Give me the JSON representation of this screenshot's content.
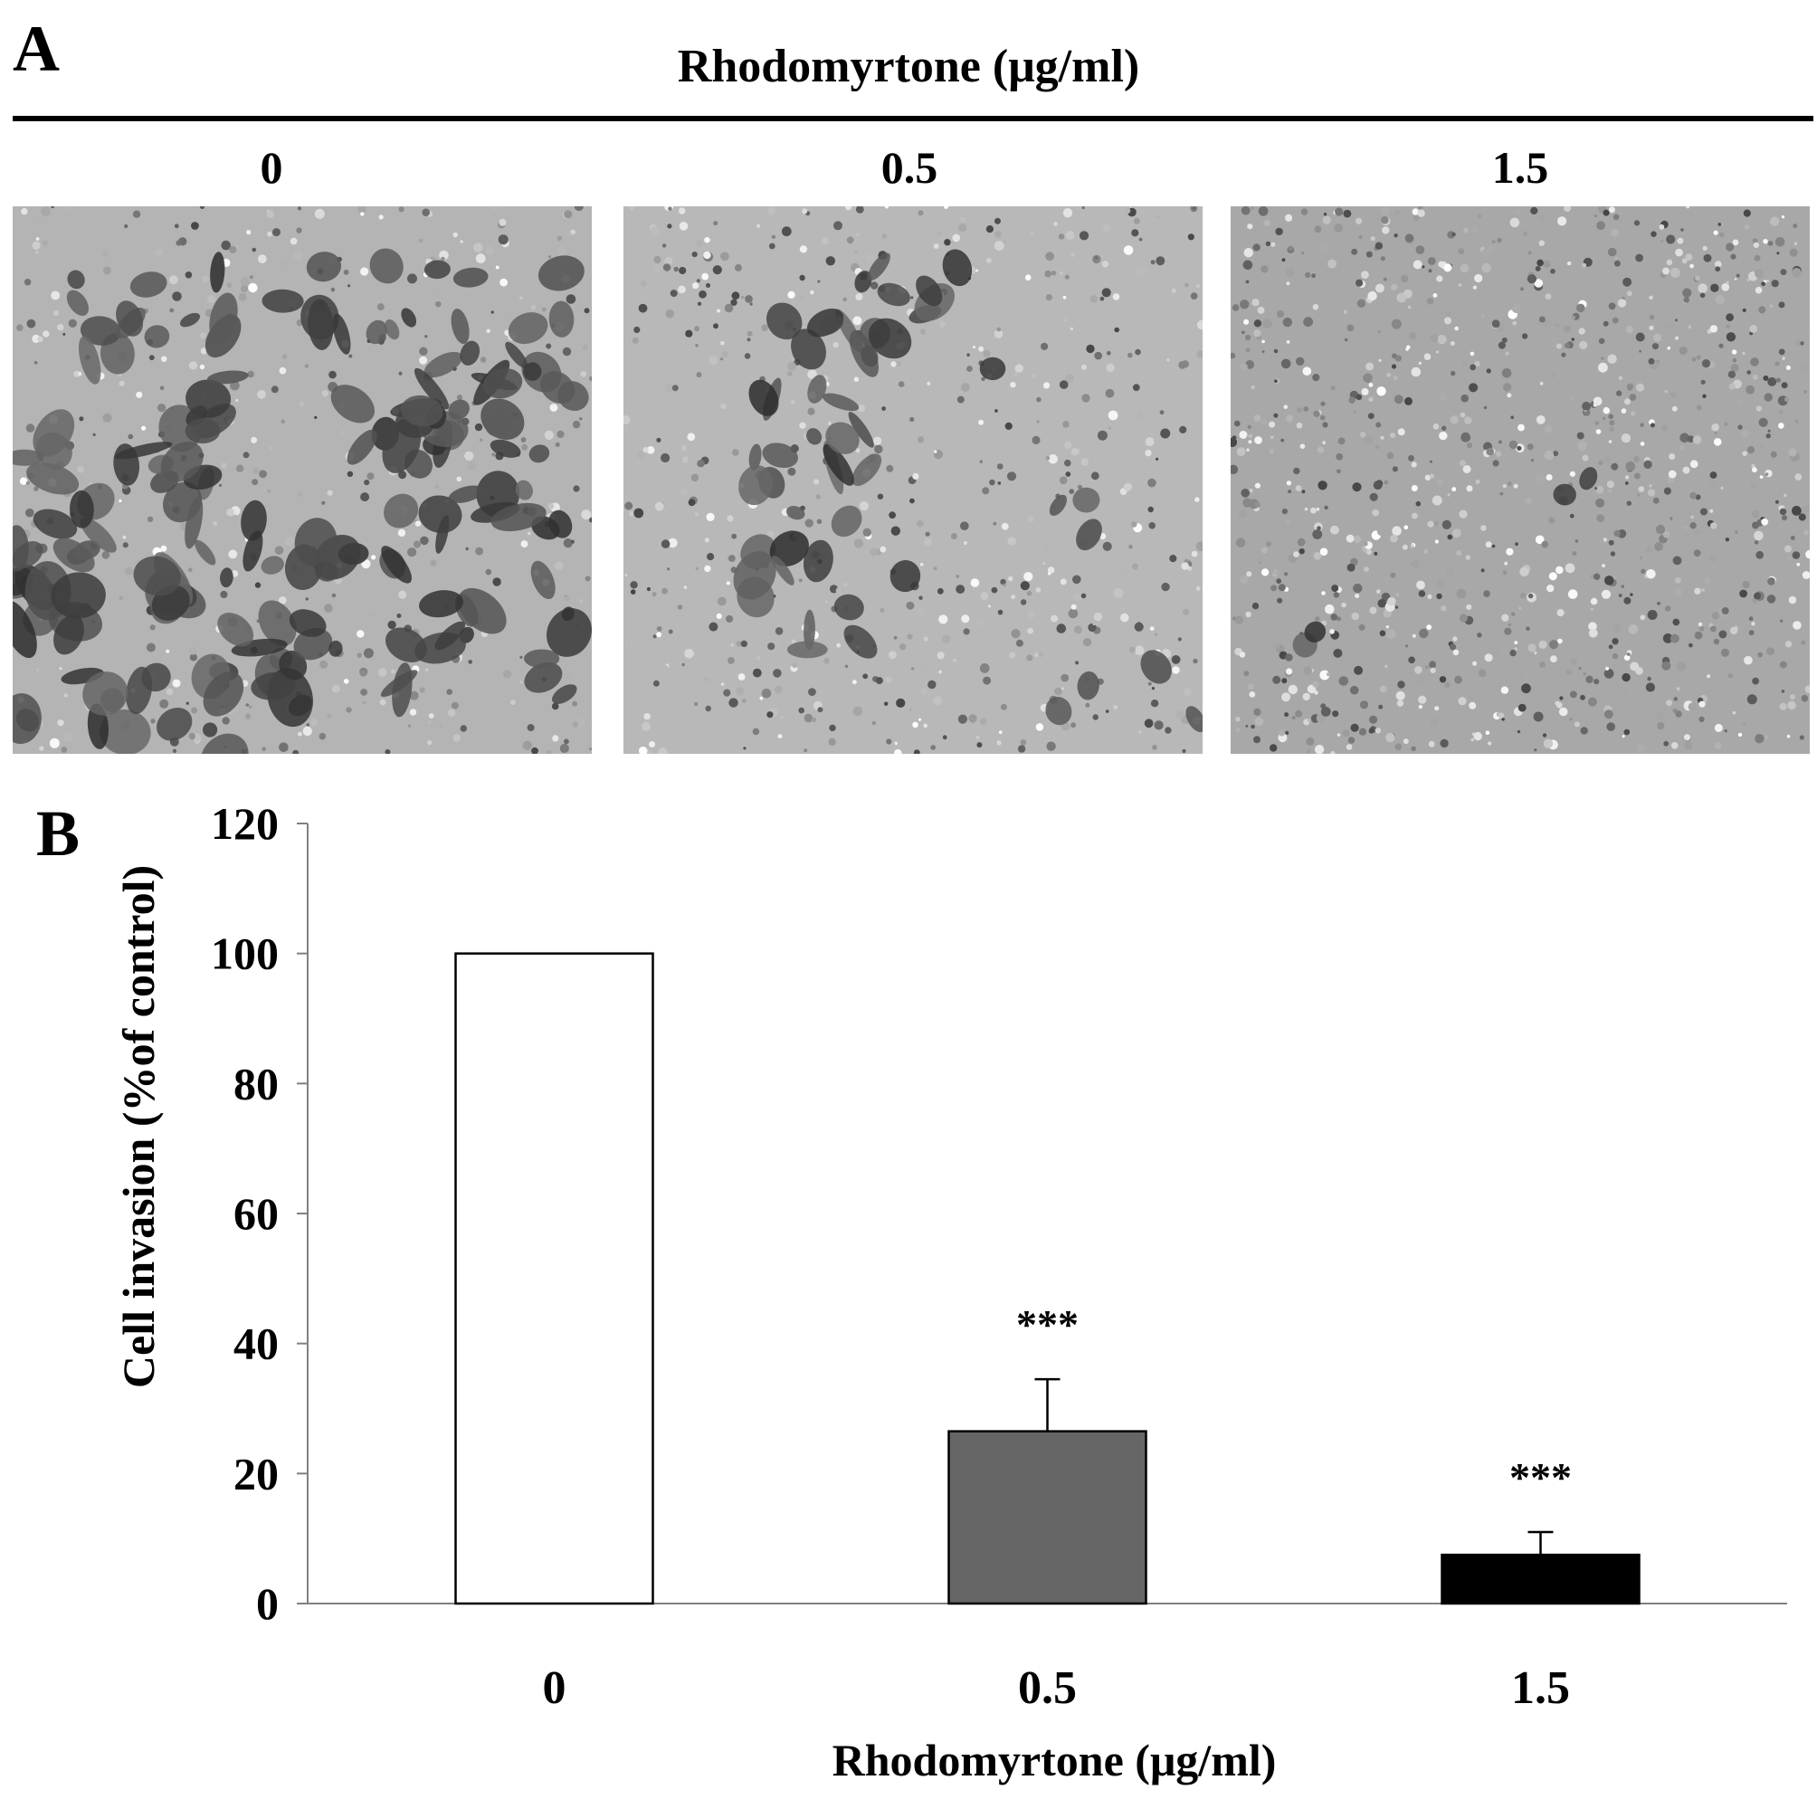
{
  "panel_a": {
    "letter": "A",
    "headline": "Rhodomyrtone  (μg/ml)",
    "doses": [
      "0",
      "0.5",
      "1.5"
    ],
    "images": [
      {
        "dose": "0",
        "image": "micrograph-dense-stained-invading-cells"
      },
      {
        "dose": "0.5",
        "image": "micrograph-sparse-stained-invading-cells"
      },
      {
        "dose": "1.5",
        "image": "micrograph-almost-no-invading-cells"
      }
    ]
  },
  "panel_b": {
    "letter": "B"
  },
  "chart_data": {
    "type": "bar",
    "categories": [
      "0",
      "0.5",
      "1.5"
    ],
    "values": [
      100,
      26.5,
      7.5
    ],
    "error": [
      0,
      8,
      3.5
    ],
    "annotations": [
      "",
      "***",
      "***"
    ],
    "bar_colors": [
      "#ffffff",
      "#666666",
      "#000000"
    ],
    "xlabel": "Rhodomyrtone (μg/ml)",
    "ylabel": "Cell invasion (%of control)",
    "ylim": [
      0,
      120
    ],
    "yticks": [
      0,
      20,
      40,
      60,
      80,
      100,
      120
    ],
    "grid": false,
    "legend": "none"
  }
}
